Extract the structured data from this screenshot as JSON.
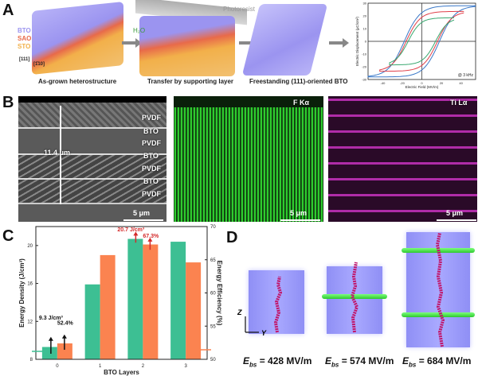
{
  "panels": {
    "a": "A",
    "b": "B",
    "c": "C",
    "d": "D"
  },
  "panel_a": {
    "steps": [
      "As-grown heterostructure",
      "Transfer by supporting layer",
      "Freestanding (111)-oriented BTO"
    ],
    "layer_labels": [
      "BTO",
      "SAO",
      "STO"
    ],
    "directions": [
      "[111]",
      "[1̄10]"
    ],
    "water_label": "H₂O",
    "photoresist_label": "Photoresist",
    "colors": {
      "bto": "#9b94f0",
      "sao": "#e86a4a",
      "sto": "#f2b04a"
    }
  },
  "chart_data": [
    {
      "type": "line",
      "title": "",
      "xlabel": "Electric Field (MV/m)",
      "ylabel": "Electric Displacement (μC/cm²)",
      "annotation": "@ 3 kHz",
      "xlim": [
        -55,
        55
      ],
      "ylim": [
        -30,
        30
      ],
      "xticks": [
        "-40",
        "-20",
        "0",
        "20",
        "40"
      ],
      "yticks": [
        "30",
        "20",
        "10",
        "0",
        "-10",
        "-20",
        "-30"
      ],
      "series": [
        {
          "name": "blue",
          "color": "#3a78c8",
          "Emax": 55,
          "Dmax": 28,
          "Dr": 21,
          "Ec": 18
        },
        {
          "name": "red",
          "color": "#e0404a",
          "Emax": 43,
          "Dmax": 23.5,
          "Dr": 17,
          "Ec": 16
        },
        {
          "name": "green",
          "color": "#3aa870",
          "Emax": 33,
          "Dmax": 18.5,
          "Dr": 13,
          "Ec": 14
        }
      ]
    },
    {
      "type": "bar",
      "categories": [
        "0",
        "1",
        "2",
        "3"
      ],
      "xlabel": "BTO Layers",
      "ylabel": "Energy Density (J/cm³)",
      "ylabel_right": "Energy Efficiency (%)",
      "ylim": [
        8,
        22
      ],
      "ylim_right": [
        50,
        70
      ],
      "yticks": [
        "8",
        "12",
        "16",
        "20"
      ],
      "yticks_right": [
        "50",
        "55",
        "60",
        "65",
        "70"
      ],
      "series": [
        {
          "name": "Energy Density",
          "axis": "left",
          "color": "#3dbf93",
          "values": [
            9.3,
            15.9,
            20.7,
            20.4
          ]
        },
        {
          "name": "Energy Efficiency",
          "axis": "right",
          "color": "#fb8350",
          "values": [
            52.4,
            65.7,
            67.3,
            64.6
          ]
        }
      ],
      "annotations": [
        {
          "text": "9.3 J/cm³",
          "color": "#111"
        },
        {
          "text": "52.4%",
          "color": "#111"
        },
        {
          "text": "20.7 J/cm³",
          "color": "#d42a2a"
        },
        {
          "text": "67.3%",
          "color": "#d42a2a"
        }
      ]
    }
  ],
  "panel_b": {
    "layers": [
      "PVDF",
      "BTO",
      "PVDF",
      "BTO",
      "PVDF",
      "BTO",
      "PVDF"
    ],
    "thickness": "11.4 μm",
    "scale": "5 μm",
    "map1_label": "F Kα",
    "map2_label": "Ti Lα",
    "map1_color": "#2ecc2e",
    "map2_color": "#d43cc8"
  },
  "panel_d": {
    "axis_z": "Z",
    "axis_y": "Y",
    "ebs": [
      {
        "sym": "E",
        "sub": "bs",
        "text": " = 428 MV/m"
      },
      {
        "sym": "E",
        "sub": "bs",
        "text": " = 574 MV/m"
      },
      {
        "sym": "E",
        "sub": "bs",
        "text": " = 684 MV/m"
      }
    ]
  }
}
